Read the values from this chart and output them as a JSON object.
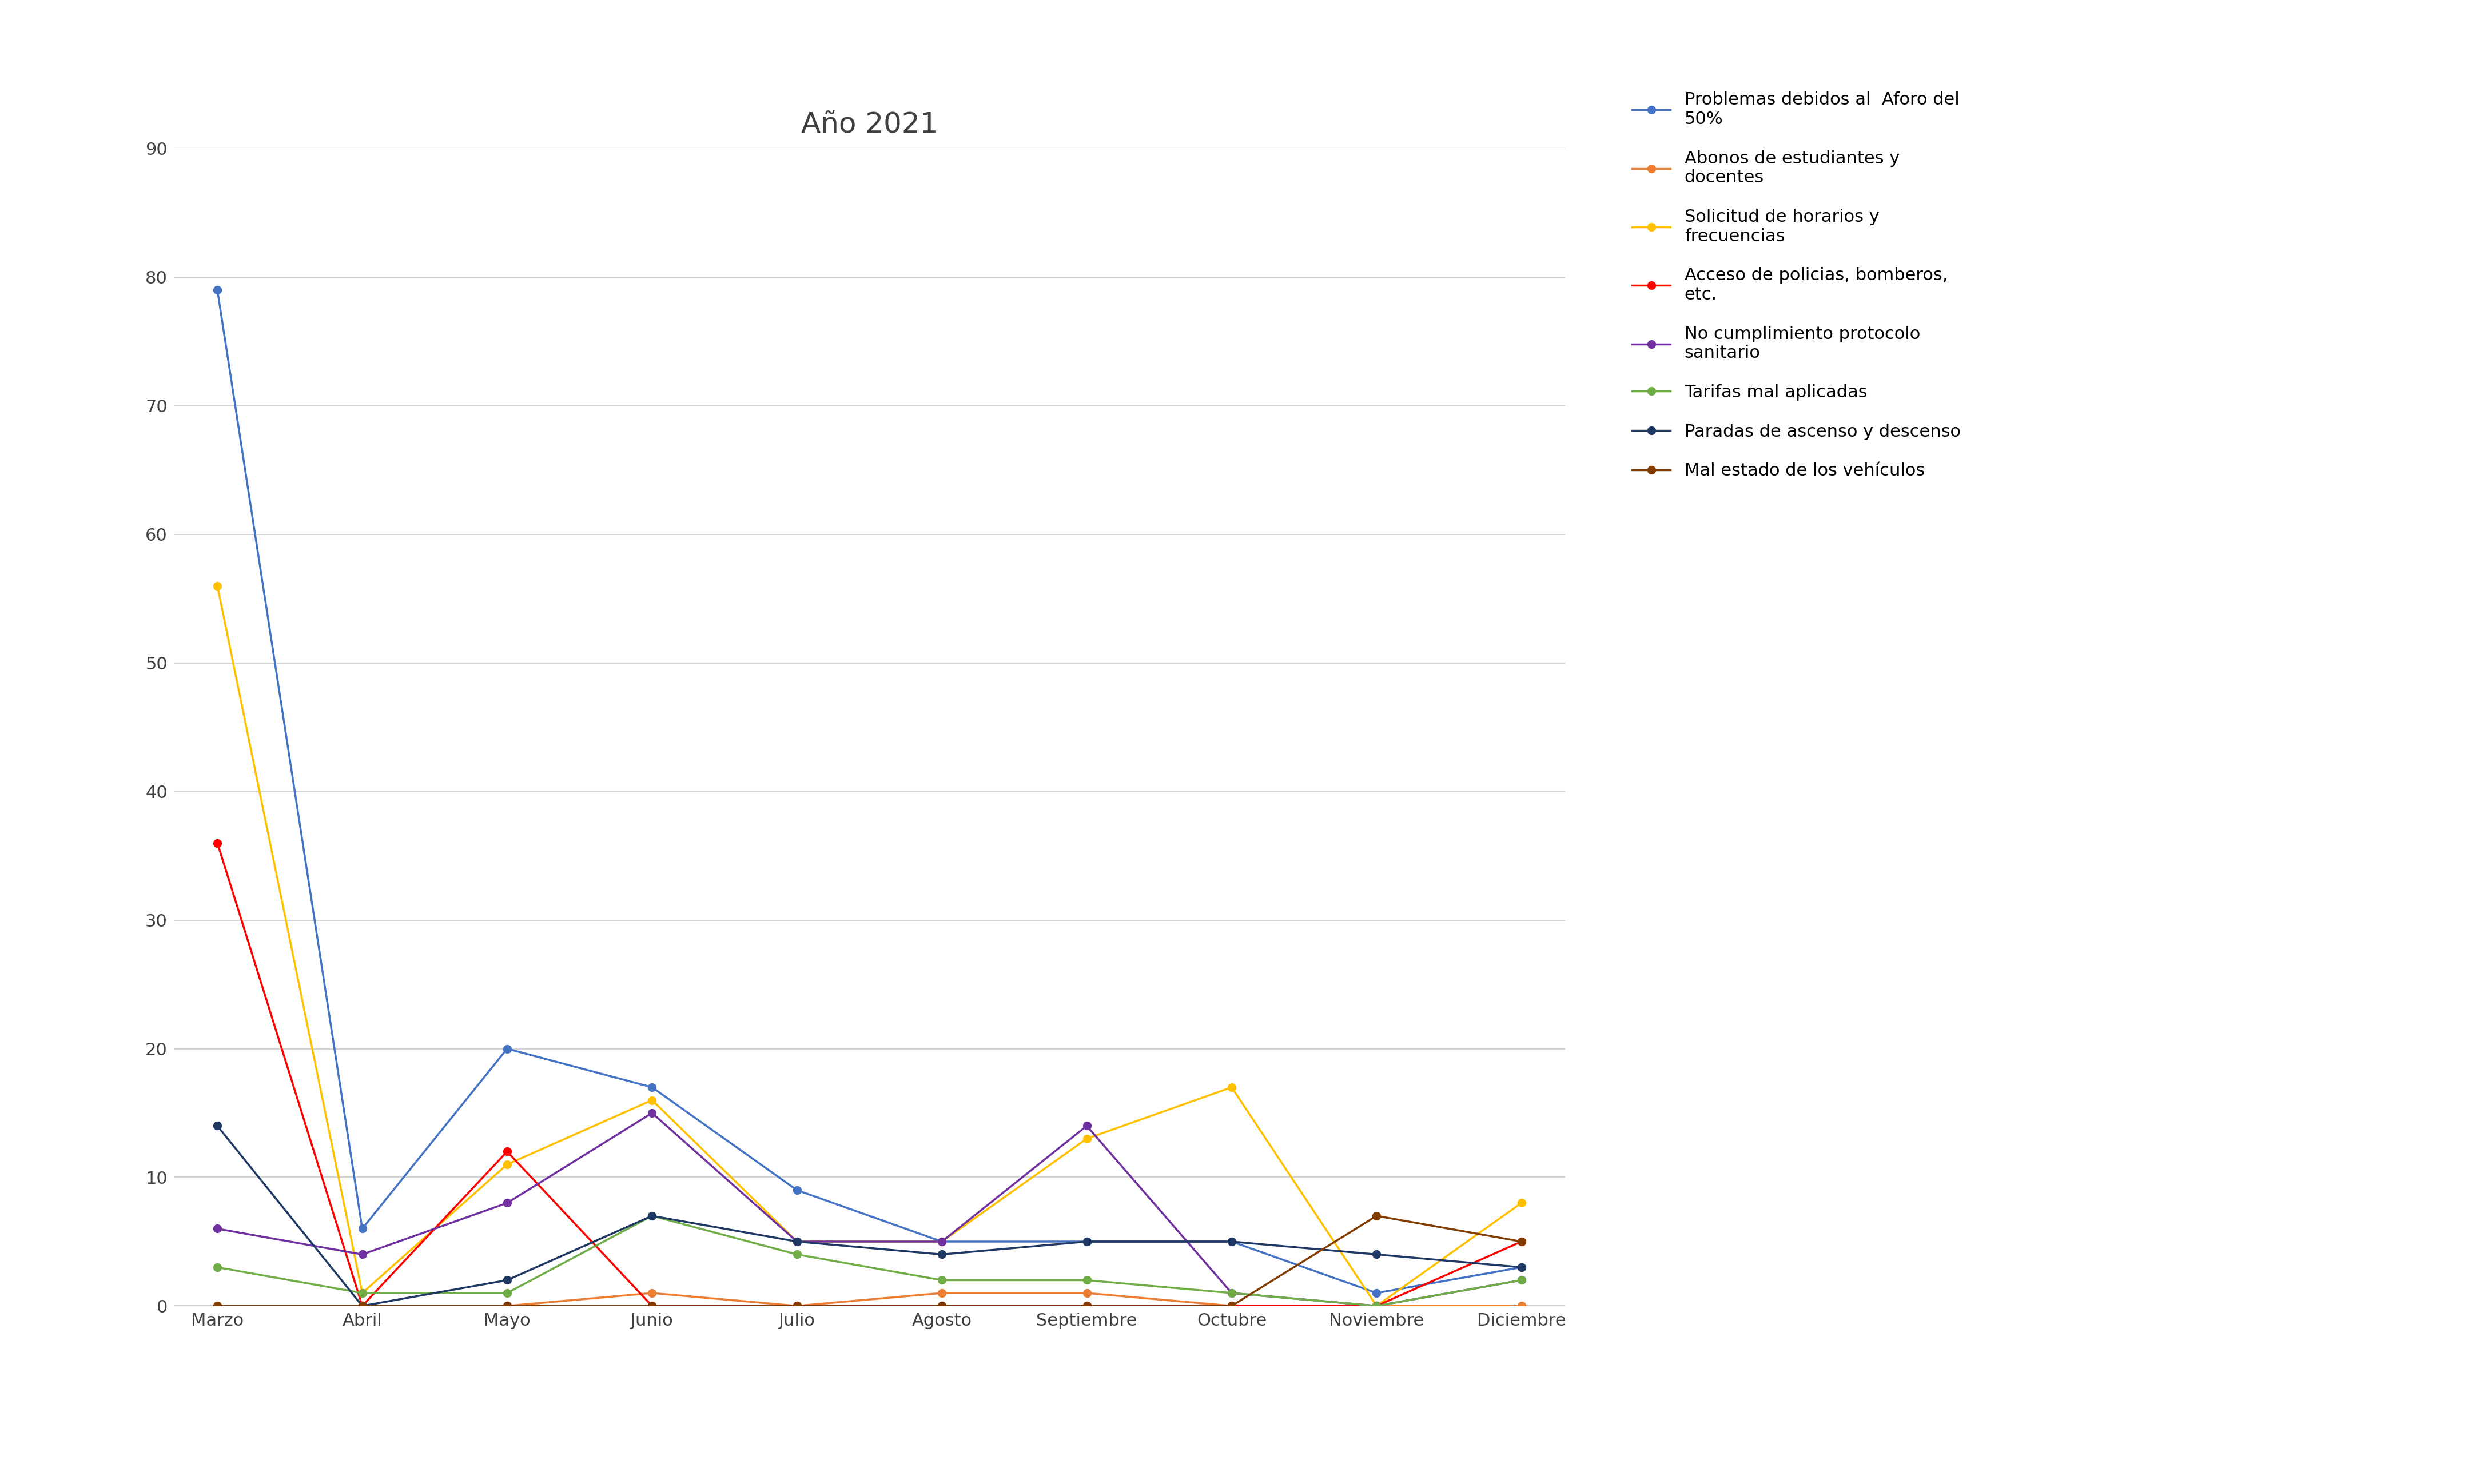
{
  "title": "Año 2021",
  "months": [
    "Marzo",
    "Abril",
    "Mayo",
    "Junio",
    "Julio",
    "Agosto",
    "Septiembre",
    "Octubre",
    "Noviembre",
    "Diciembre"
  ],
  "series": [
    {
      "label": "Problemas debidos al  Aforo del\n50%",
      "color": "#4472C4",
      "marker": "o",
      "values": [
        79,
        6,
        20,
        17,
        9,
        5,
        5,
        5,
        1,
        3
      ]
    },
    {
      "label": "Abonos de estudiantes y\ndocentes",
      "color": "#ED7D31",
      "marker": "o",
      "values": [
        0,
        0,
        0,
        1,
        0,
        1,
        1,
        0,
        0,
        0
      ]
    },
    {
      "label": "Solicitud de horarios y\nfrecuencias",
      "color": "#FFC000",
      "marker": "o",
      "values": [
        56,
        1,
        11,
        16,
        5,
        5,
        13,
        17,
        0,
        8
      ]
    },
    {
      "label": "Acceso de policias, bomberos,\netc.",
      "color": "#FF0000",
      "marker": "o",
      "values": [
        36,
        0,
        12,
        0,
        0,
        0,
        0,
        0,
        0,
        5
      ]
    },
    {
      "label": "No cumplimiento protocolo\nsanitario",
      "color": "#7030A0",
      "marker": "o",
      "values": [
        6,
        4,
        8,
        15,
        5,
        5,
        14,
        1,
        0,
        2
      ]
    },
    {
      "label": "Tarifas mal aplicadas",
      "color": "#70AD47",
      "marker": "o",
      "values": [
        3,
        1,
        1,
        7,
        4,
        2,
        2,
        1,
        0,
        2
      ]
    },
    {
      "label": "Paradas de ascenso y descenso",
      "color": "#203864",
      "marker": "o",
      "values": [
        14,
        0,
        2,
        7,
        5,
        4,
        5,
        5,
        4,
        3
      ]
    },
    {
      "label": "Mal estado de los vehículos",
      "color": "#833C00",
      "marker": "o",
      "values": [
        0,
        0,
        0,
        0,
        0,
        0,
        0,
        0,
        7,
        5
      ]
    }
  ],
  "ylim": [
    0,
    90
  ],
  "yticks": [
    0,
    10,
    20,
    30,
    40,
    50,
    60,
    70,
    80,
    90
  ],
  "background_color": "#FFFFFF",
  "grid_color": "#D3D3D3",
  "title_fontsize": 36,
  "tick_fontsize": 22,
  "legend_fontsize": 22,
  "linewidth": 2.5,
  "markersize": 10
}
